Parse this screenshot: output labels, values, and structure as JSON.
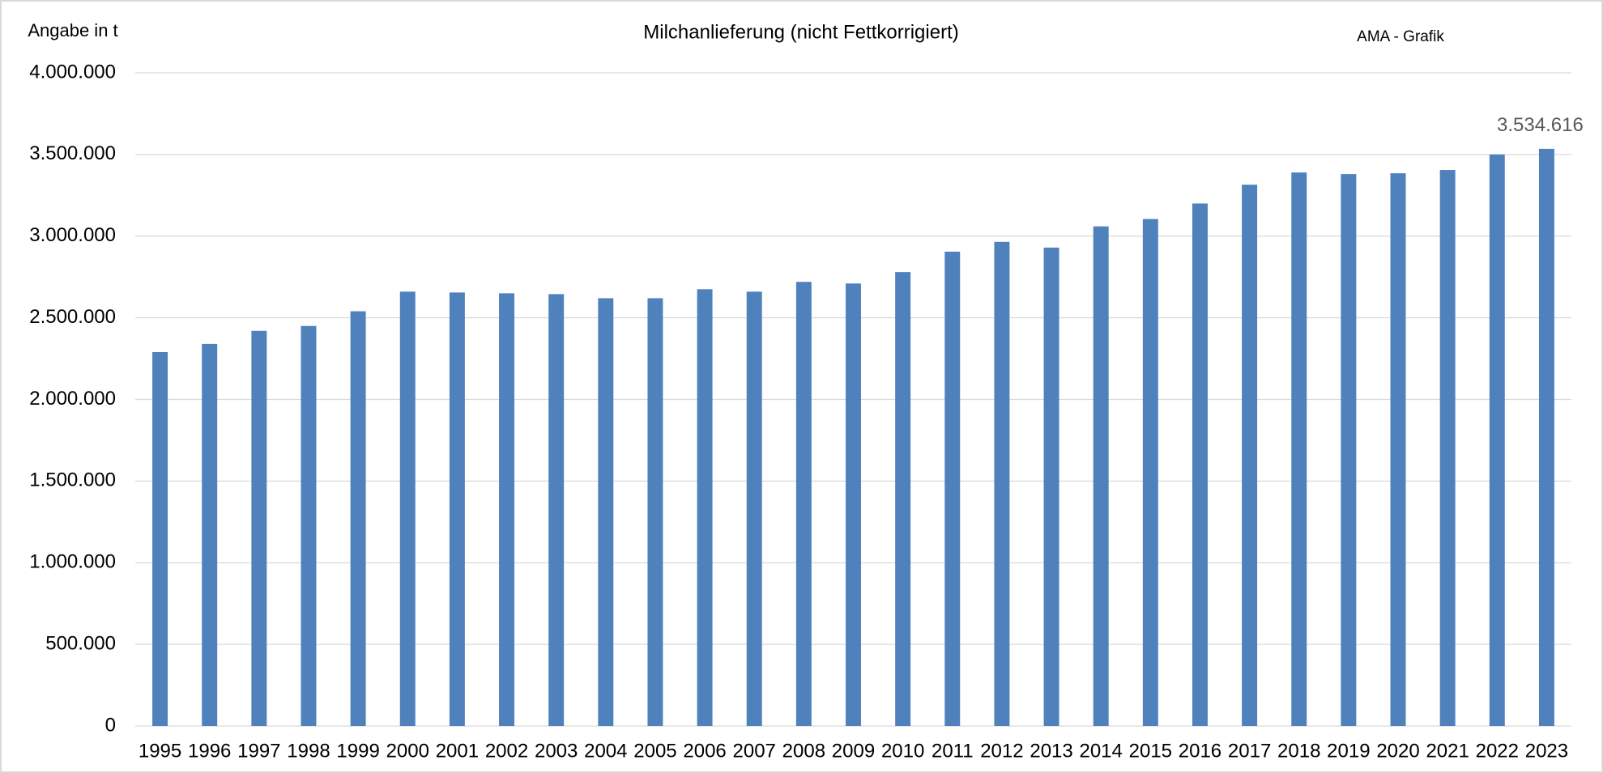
{
  "chart_data": {
    "type": "bar",
    "title": "Milchanlieferung (nicht Fettkorrigiert)",
    "unit_label": "Angabe in t",
    "source_label": "AMA - Grafik",
    "categories": [
      "1995",
      "1996",
      "1997",
      "1998",
      "1999",
      "2000",
      "2001",
      "2002",
      "2003",
      "2004",
      "2005",
      "2006",
      "2007",
      "2008",
      "2009",
      "2010",
      "2011",
      "2012",
      "2013",
      "2014",
      "2015",
      "2016",
      "2017",
      "2018",
      "2019",
      "2020",
      "2021",
      "2022",
      "2023"
    ],
    "values": [
      2290000,
      2340000,
      2420000,
      2450000,
      2540000,
      2660000,
      2655000,
      2650000,
      2645000,
      2620000,
      2620000,
      2675000,
      2660000,
      2720000,
      2710000,
      2780000,
      2905000,
      2965000,
      2930000,
      3060000,
      3105000,
      3200000,
      3315000,
      3390000,
      3380000,
      3385000,
      3405000,
      3500000,
      3534616
    ],
    "value_labels": [
      null,
      null,
      null,
      null,
      null,
      null,
      null,
      null,
      null,
      null,
      null,
      null,
      null,
      null,
      null,
      null,
      null,
      null,
      null,
      null,
      null,
      null,
      null,
      null,
      null,
      null,
      null,
      null,
      "3.534.616"
    ],
    "color": "#4f81bd",
    "ylim": [
      0,
      4000000
    ],
    "yticks": [
      0,
      {
        "value": 500000,
        "label": "500.000"
      },
      {
        "value": 1000000,
        "label": "1.000.000"
      },
      {
        "value": 1500000,
        "label": "1.500.000"
      },
      {
        "value": 2000000,
        "label": "2.000.000"
      },
      {
        "value": 2500000,
        "label": "2.500.000"
      },
      {
        "value": 3000000,
        "label": "3.000.000"
      },
      {
        "value": 3500000,
        "label": "3.500.000"
      },
      {
        "value": 4000000,
        "label": "4.000.000"
      }
    ],
    "grid": true
  }
}
